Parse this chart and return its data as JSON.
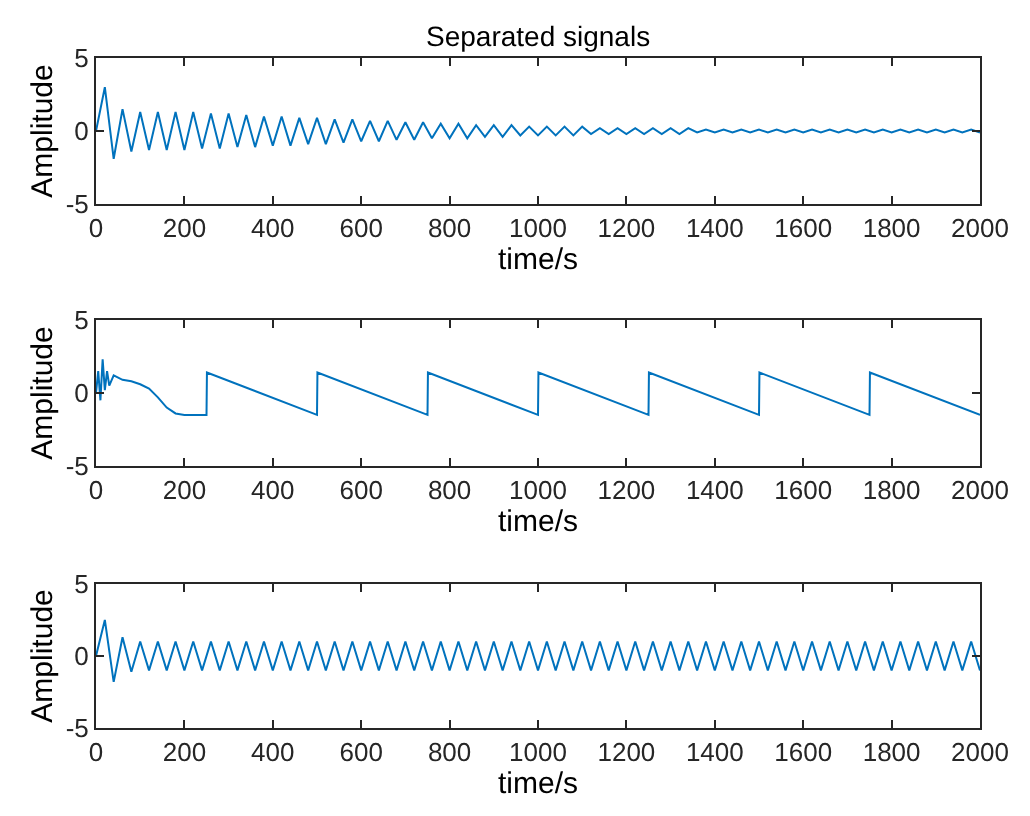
{
  "chart_data": [
    {
      "type": "line",
      "title": "Separated signals",
      "xlabel": "time/s",
      "ylabel": "Amplitude",
      "xlim": [
        0,
        2000
      ],
      "xticks": [
        0,
        200,
        400,
        600,
        800,
        1000,
        1200,
        1400,
        1600,
        1800,
        2000
      ],
      "ylim": [
        -5,
        5
      ],
      "yticks": [
        -5,
        0,
        5
      ],
      "x": [
        0,
        20,
        40,
        60,
        80,
        100,
        120,
        140,
        160,
        180,
        200,
        220,
        240,
        260,
        280,
        300,
        320,
        340,
        360,
        380,
        400,
        420,
        440,
        460,
        480,
        500,
        520,
        540,
        560,
        580,
        600,
        620,
        640,
        660,
        680,
        700,
        720,
        740,
        760,
        780,
        800,
        820,
        840,
        860,
        880,
        900,
        920,
        940,
        960,
        980,
        1000,
        1020,
        1040,
        1060,
        1080,
        1100,
        1120,
        1140,
        1160,
        1180,
        1200,
        1220,
        1240,
        1260,
        1280,
        1300,
        1320,
        1340,
        1360,
        1380,
        1400,
        1420,
        1440,
        1460,
        1480,
        1500,
        1520,
        1540,
        1560,
        1580,
        1600,
        1620,
        1640,
        1660,
        1680,
        1700,
        1720,
        1740,
        1760,
        1780,
        1800,
        1820,
        1840,
        1860,
        1880,
        1900,
        1920,
        1940,
        1960,
        1980,
        2000
      ],
      "series": [
        {
          "color": "#0072bd",
          "values": [
            0,
            3.0,
            -1.9,
            1.5,
            -1.4,
            1.3,
            -1.3,
            1.3,
            -1.3,
            1.3,
            -1.3,
            1.3,
            -1.2,
            1.2,
            -1.2,
            1.2,
            -1.1,
            1.1,
            -1.1,
            1.0,
            -1.0,
            1.0,
            -1.0,
            0.9,
            -0.9,
            0.9,
            -0.9,
            0.8,
            -0.8,
            0.8,
            -0.7,
            0.7,
            -0.7,
            0.7,
            -0.6,
            0.6,
            -0.6,
            0.6,
            -0.5,
            0.5,
            -0.5,
            0.5,
            -0.5,
            0.4,
            -0.4,
            0.4,
            -0.4,
            0.4,
            -0.3,
            0.3,
            -0.3,
            0.3,
            -0.3,
            0.3,
            -0.3,
            0.3,
            -0.2,
            0.2,
            -0.2,
            0.2,
            -0.2,
            0.2,
            -0.2,
            0.2,
            -0.2,
            0.2,
            -0.2,
            0.2,
            -0.1,
            0.1,
            -0.1,
            0.1,
            -0.1,
            0.1,
            -0.1,
            0.1,
            -0.1,
            0.1,
            -0.1,
            0.1,
            -0.1,
            0.1,
            -0.1,
            0.1,
            -0.1,
            0.1,
            -0.1,
            0.1,
            -0.1,
            0.1,
            -0.1,
            0.1,
            -0.1,
            0.1,
            -0.1,
            0.1,
            -0.1,
            0.1,
            -0.1,
            0.1,
            -0.1
          ]
        }
      ]
    },
    {
      "type": "line",
      "xlabel": "time/s",
      "ylabel": "Amplitude",
      "xlim": [
        0,
        2000
      ],
      "xticks": [
        0,
        200,
        400,
        600,
        800,
        1000,
        1200,
        1400,
        1600,
        1800,
        2000
      ],
      "ylim": [
        -5,
        5
      ],
      "yticks": [
        -5,
        0,
        5
      ],
      "series": [
        {
          "color": "#0072bd",
          "x": [
            0,
            5,
            10,
            15,
            20,
            25,
            30,
            40,
            60,
            80,
            100,
            120,
            140,
            160,
            180,
            200,
            250,
            251,
            500,
            501,
            750,
            751,
            1000,
            1001,
            1250,
            1251,
            1500,
            1501,
            1750,
            1751,
            2000
          ],
          "values": [
            0,
            1.5,
            -0.5,
            2.3,
            0.2,
            1.5,
            0.5,
            1.2,
            0.9,
            0.8,
            0.6,
            0.3,
            -0.3,
            -1.0,
            -1.4,
            -1.5,
            -1.5,
            1.4,
            -1.5,
            1.4,
            -1.5,
            1.4,
            -1.5,
            1.4,
            -1.5,
            1.4,
            -1.5,
            1.4,
            -1.5,
            1.4,
            -1.5
          ]
        }
      ]
    },
    {
      "type": "line",
      "xlabel": "time/s",
      "ylabel": "Amplitude",
      "xlim": [
        0,
        2000
      ],
      "xticks": [
        0,
        200,
        400,
        600,
        800,
        1000,
        1200,
        1400,
        1600,
        1800,
        2000
      ],
      "ylim": [
        -5,
        5
      ],
      "yticks": [
        -5,
        0,
        5
      ],
      "x": [
        0,
        20,
        40,
        60,
        80,
        100,
        120,
        140,
        160,
        180,
        200,
        220,
        240,
        260,
        280,
        300,
        320,
        340,
        360,
        380,
        400,
        420,
        440,
        460,
        480,
        500,
        520,
        540,
        560,
        580,
        600,
        620,
        640,
        660,
        680,
        700,
        720,
        740,
        760,
        780,
        800,
        820,
        840,
        860,
        880,
        900,
        920,
        940,
        960,
        980,
        1000,
        1020,
        1040,
        1060,
        1080,
        1100,
        1120,
        1140,
        1160,
        1180,
        1200,
        1220,
        1240,
        1260,
        1280,
        1300,
        1320,
        1340,
        1360,
        1380,
        1400,
        1420,
        1440,
        1460,
        1480,
        1500,
        1520,
        1540,
        1560,
        1580,
        1600,
        1620,
        1640,
        1660,
        1680,
        1700,
        1720,
        1740,
        1760,
        1780,
        1800,
        1820,
        1840,
        1860,
        1880,
        1900,
        1920,
        1940,
        1960,
        1980,
        2000
      ],
      "series": [
        {
          "color": "#0072bd",
          "values": [
            0,
            2.5,
            -1.8,
            1.3,
            -1.1,
            1.0,
            -1,
            1,
            -1,
            1,
            -1,
            1,
            -1,
            1,
            -1,
            1,
            -1,
            1,
            -1,
            1,
            -1,
            1,
            -1,
            1,
            -1,
            1,
            -1,
            1,
            -1,
            1,
            -1,
            1,
            -1,
            1,
            -1,
            1,
            -1,
            1,
            -1,
            1,
            -1,
            1,
            -1,
            1,
            -1,
            1,
            -1,
            1,
            -1,
            1,
            -1,
            1,
            -1,
            1,
            -1,
            1,
            -1,
            1,
            -1,
            1,
            -1,
            1,
            -1,
            1,
            -1,
            1,
            -1,
            1,
            -1,
            1,
            -1,
            1,
            -1,
            1,
            -1,
            1,
            -1,
            1,
            -1,
            1,
            -1,
            1,
            -1,
            1,
            -1,
            1,
            -1,
            1,
            -1,
            1,
            -1,
            1,
            -1,
            1,
            -1,
            1,
            -1,
            1,
            -1,
            1,
            -1
          ]
        }
      ]
    }
  ]
}
